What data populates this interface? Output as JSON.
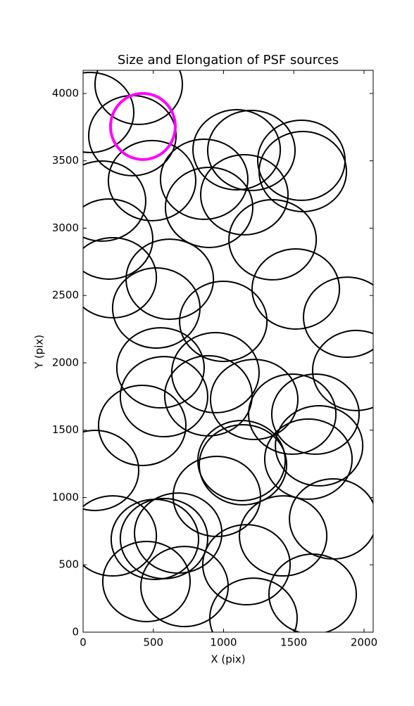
{
  "chart_data": {
    "type": "ellipse",
    "title": "Size and Elongation of PSF sources",
    "x_label": "X (pix)",
    "y_label": "Y (pix)",
    "xlim": [
      0,
      2065
    ],
    "ylim": [
      0,
      4172
    ],
    "xticks": [
      0,
      500,
      1000,
      1500,
      2000
    ],
    "yticks": [
      0,
      500,
      1000,
      1500,
      2000,
      2500,
      3000,
      3500,
      4000
    ],
    "series": [
      {
        "color": "#000000",
        "linewidth": 2,
        "width": 622,
        "height": 595,
        "x": [
          396,
          50,
          351,
          491,
          135,
          185,
          211,
          617,
          521,
          998,
          862,
          897,
          1093,
          1198,
          1148,
          1554,
          1564,
          1349,
          1514,
          1880,
          1945,
          551,
          576,
          942,
          892,
          1218,
          1489,
          1654,
          1680,
          1604,
          421,
          85,
          1128,
          1138,
          952,
          211,
          511,
          576,
          677,
          451,
          722,
          1163,
          1424,
          1780,
          1634,
          1213
        ],
        "y": [
          4068,
          3859,
          3687,
          3353,
          3201,
          2919,
          2632,
          2621,
          2407,
          2308,
          3363,
          3154,
          3582,
          3577,
          3248,
          3504,
          3420,
          2914,
          2548,
          2339,
          1943,
          1963,
          1749,
          1927,
          1755,
          1728,
          1619,
          1619,
          1384,
          1285,
          1535,
          1201,
          1274,
          1243,
          1008,
          715,
          689,
          695,
          736,
          376,
          339,
          501,
          715,
          841,
          282,
          104
        ]
      },
      {
        "color": "#ff00ff",
        "linewidth": 4,
        "width": 461,
        "height": 491,
        "x": [
          426
        ],
        "y": [
          3755
        ]
      }
    ]
  }
}
